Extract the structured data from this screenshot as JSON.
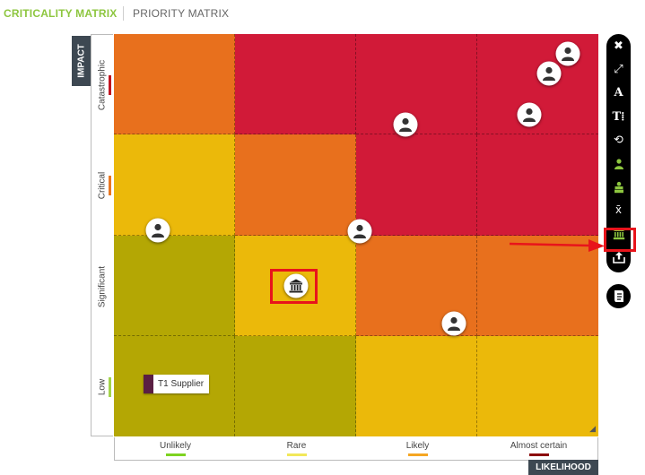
{
  "tabs": {
    "active": "CRITICALITY MATRIX",
    "inactive": "PRIORITY MATRIX"
  },
  "axes": {
    "impact_title": "IMPACT",
    "likelihood_title": "LIKELIHOOD",
    "impact_levels": [
      {
        "label": "Catastrophic",
        "color": "#c0141f"
      },
      {
        "label": "Critical",
        "color": "#e87722"
      },
      {
        "label": "Significant",
        "color": "#ffffff"
      },
      {
        "label": "Low",
        "color": "#a3d34a"
      }
    ],
    "likelihood_levels": [
      {
        "label": "Unlikely",
        "color": "#7ed321"
      },
      {
        "label": "Rare",
        "color": "#f2e85a"
      },
      {
        "label": "Likely",
        "color": "#f5a623"
      },
      {
        "label": "Almost certain",
        "color": "#8b0000"
      }
    ]
  },
  "matrix_colors": [
    [
      "#e8701d",
      "#d11a38",
      "#d11a38",
      "#d11a38"
    ],
    [
      "#ebb90a",
      "#e8701d",
      "#d11a38",
      "#d11a38"
    ],
    [
      "#b4a704",
      "#ebb90a",
      "#e8701d",
      "#e8701d"
    ],
    [
      "#b4a704",
      "#b4a704",
      "#ebb90a",
      "#ebb90a"
    ]
  ],
  "legend": {
    "supplier_label": "T1 Supplier",
    "supplier_color": "#5a1f43"
  },
  "markers": [
    {
      "icon": "person-icon",
      "impact": 3.1,
      "likelihood": 2.41
    },
    {
      "icon": "person-icon",
      "impact": 3.8,
      "likelihood": 3.75
    },
    {
      "icon": "person-icon",
      "impact": 3.61,
      "likelihood": 3.59
    },
    {
      "icon": "person-icon",
      "impact": 3.2,
      "likelihood": 3.43
    },
    {
      "icon": "person-icon",
      "impact": 2.05,
      "likelihood": 0.36
    },
    {
      "icon": "person-icon",
      "impact": 2.04,
      "likelihood": 2.03
    },
    {
      "icon": "person-icon",
      "impact": 1.12,
      "likelihood": 2.81
    },
    {
      "icon": "institution-icon",
      "impact": 1.5,
      "likelihood": 1.5
    }
  ],
  "toolbar": [
    {
      "icon": "close-icon",
      "glyph": "✖",
      "color": "#ffffff"
    },
    {
      "icon": "expand-icon",
      "glyph": "⤢",
      "color": "#ffffff"
    },
    {
      "icon": "font-icon",
      "glyph": "A",
      "color": "#ffffff"
    },
    {
      "icon": "text-size-icon",
      "glyph": "T⁞",
      "color": "#ffffff"
    },
    {
      "icon": "history-icon",
      "glyph": "⟲",
      "color": "#ffffff"
    },
    {
      "icon": "user-filter-icon",
      "glyph": "",
      "color": "#8dc63f"
    },
    {
      "icon": "user-group-icon",
      "glyph": "",
      "color": "#8dc63f"
    },
    {
      "icon": "mean-icon",
      "glyph": "x̄",
      "color": "#ffffff"
    },
    {
      "icon": "institution-filter-icon",
      "glyph": "",
      "color": "#8dc63f"
    },
    {
      "icon": "export-icon",
      "glyph": "",
      "color": "#ffffff"
    }
  ],
  "extra_tool": {
    "icon": "report-icon"
  }
}
